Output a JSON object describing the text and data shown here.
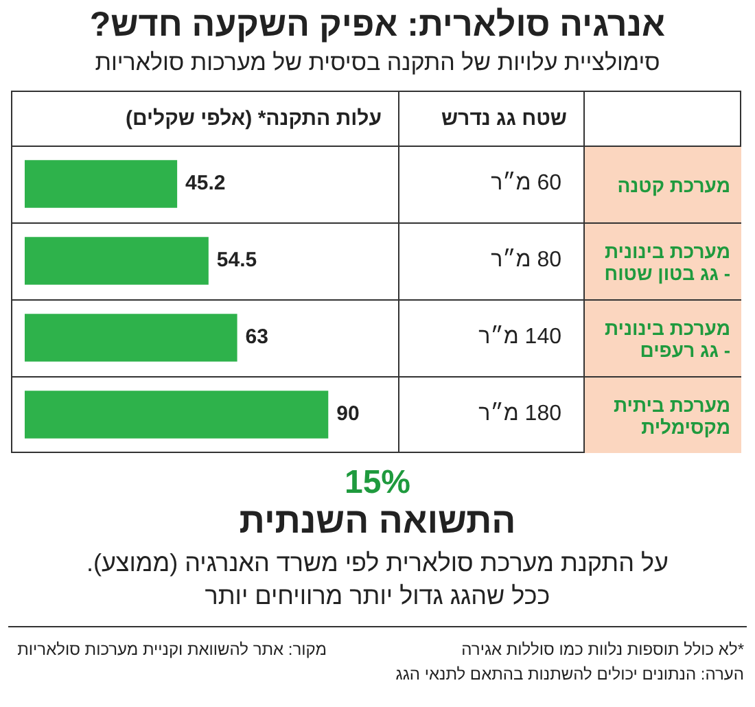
{
  "chart_data": {
    "type": "bar",
    "orientation": "horizontal",
    "title": "אנרגיה סולארית: אפיק השקעה חדש?",
    "subtitle": "סימולציית עלויות של התקנה בסיסית של מערכות סולאריות",
    "xlabel": "עלות התקנה* (אלפי שקלים)",
    "categories": [
      "מערכת קטנה",
      "מערכת בינונית - גג בטון שטוח",
      "מערכת בינונית - גג רעפים",
      "מערכת ביתית מקסימלית"
    ],
    "values": [
      45.2,
      54.5,
      63,
      90
    ],
    "color": "#2eb24b",
    "data_labels": true,
    "legend": false,
    "annotations": [
      "שטח גג נדרש",
      "60 מ״ר",
      "80 מ״ר",
      "140 מ״ר",
      "180 מ״ר",
      "15%",
      "התשואה השנתית",
      "על התקנת מערכת סולארית לפי משרד האנרגיה (ממוצע).",
      "ככל שהגג גדול יותר מרוויחים יותר",
      "*לא כולל תוספות נלוות כמו סוללות אגירה",
      "הערה: הנתונים יכולים להשתנות בהתאם לתנאי הגג",
      "מקור: אתר להשוואת וקניית מערכות סולאריות"
    ]
  }
}
